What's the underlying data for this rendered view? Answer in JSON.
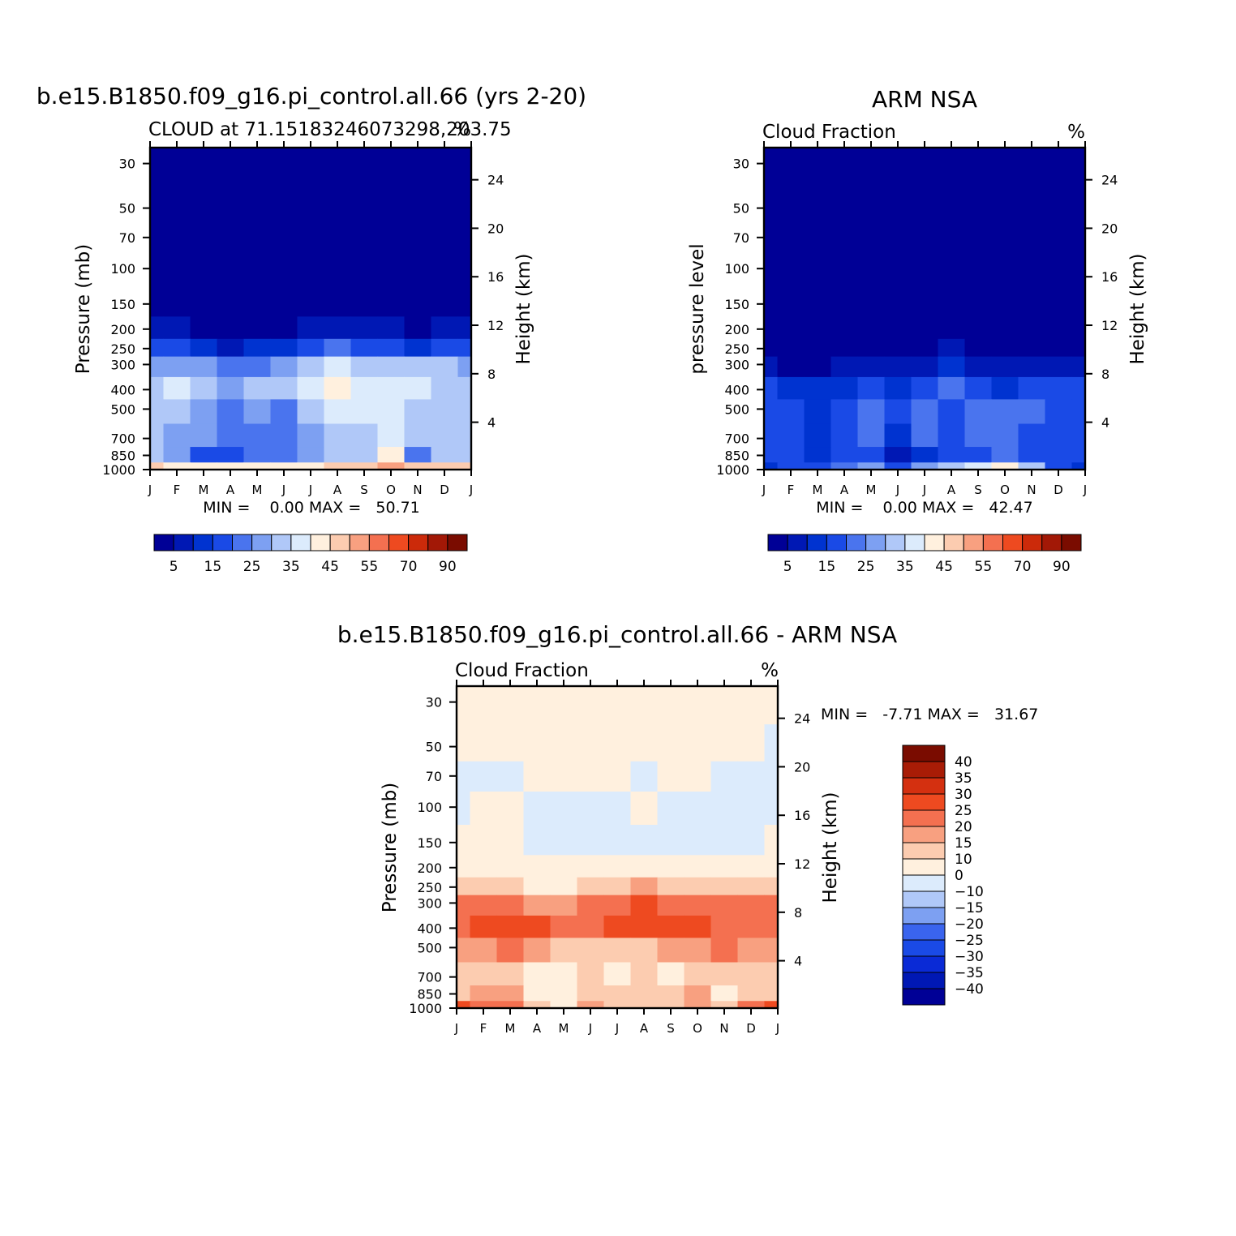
{
  "colors": {
    "abs_scale": [
      "#000096",
      "#0018b4",
      "#0033d0",
      "#1a4ae6",
      "#4a74ee",
      "#7da0f2",
      "#b0c8f8",
      "#dcebfc",
      "#fff0de",
      "#fcccb0",
      "#f8a080",
      "#f47050",
      "#ee4a20",
      "#cc2a0a",
      "#a21806",
      "#7a0c00"
    ],
    "diff_scale": [
      "#000096",
      "#0018b4",
      "#0a2ad6",
      "#1a4ae6",
      "#3a64ee",
      "#7da0f2",
      "#b0c8f8",
      "#dcebfc",
      "#fff0de",
      "#fcccb0",
      "#f8a080",
      "#f47050",
      "#ee4a20",
      "#d43010",
      "#a81c06",
      "#7a0c00"
    ]
  },
  "panels": {
    "model": {
      "main_title": "b.e15.B1850.f09_g16.pi_control.all.66 (yrs 2-20)",
      "left_subtitle": "CLOUD at 71.15183246073298,203.75",
      "right_subtitle": "%",
      "y_label": "Pressure (mb)",
      "y2_label": "Height (km)",
      "minmax": "MIN =    0.00 MAX =   50.71"
    },
    "obs": {
      "main_title": "ARM NSA",
      "left_subtitle": "Cloud Fraction",
      "right_subtitle": "%",
      "y_label": "pressure level",
      "y2_label": "Height (km)",
      "minmax": "MIN =    0.00 MAX =   42.47"
    },
    "diff": {
      "main_title": "b.e15.B1850.f09_g16.pi_control.all.66 - ARM NSA",
      "left_subtitle": "Cloud Fraction",
      "right_subtitle": "%",
      "y_label": "Pressure (mb)",
      "y2_label": "Height (km)",
      "minmax": "MIN =   -7.71 MAX =   31.67"
    }
  },
  "chart_data": [
    {
      "type": "heatmap",
      "title": "b.e15.B1850.f09_g16.pi_control.all.66 (yrs 2-20)",
      "subtitle": "CLOUD at 71.15183246073298,203.75",
      "units": "%",
      "xlabel": "",
      "ylabel": "Pressure (mb)",
      "y2label": "Height (km)",
      "x": [
        "J",
        "F",
        "M",
        "A",
        "M",
        "J",
        "J",
        "A",
        "S",
        "O",
        "N",
        "D",
        "J"
      ],
      "y_ticks": [
        30,
        50,
        70,
        100,
        150,
        200,
        250,
        300,
        400,
        500,
        700,
        850,
        1000
      ],
      "y2_ticks": [
        24,
        20,
        16,
        12,
        8,
        4
      ],
      "ylim": [
        1000,
        25
      ],
      "y_scale": "log",
      "colorbar_ticks": [
        "5",
        "15",
        "25",
        "35",
        "45",
        "55",
        "70",
        "90"
      ],
      "levels": [
        0,
        5,
        10,
        15,
        20,
        25,
        30,
        35,
        40,
        45,
        50,
        55,
        60,
        70,
        80,
        90,
        100
      ],
      "z": [
        [
          0,
          0,
          0,
          0,
          0,
          0,
          0,
          0,
          0,
          0,
          0,
          0,
          0
        ],
        [
          0,
          0,
          0,
          0,
          0,
          0,
          0,
          0,
          0,
          0,
          0,
          0,
          0
        ],
        [
          0,
          0,
          0,
          0,
          0,
          0,
          0,
          0,
          0,
          0,
          0,
          0,
          0
        ],
        [
          0,
          0,
          0,
          0,
          0,
          0,
          0,
          0,
          0,
          0,
          0,
          0,
          0
        ],
        [
          1,
          1,
          1,
          0,
          0,
          1,
          1,
          1,
          1,
          1,
          1,
          1,
          1
        ],
        [
          7,
          6,
          4,
          1,
          2,
          4,
          5,
          6,
          5,
          5,
          4,
          6,
          7
        ],
        [
          17,
          15,
          13,
          8,
          10,
          14,
          17,
          20,
          18,
          16,
          14,
          15,
          17
        ],
        [
          28,
          27,
          26,
          22,
          24,
          27,
          30,
          35,
          33,
          32,
          31,
          30,
          28
        ],
        [
          31,
          36,
          31,
          29,
          30,
          30,
          36,
          40,
          37,
          37,
          36,
          32,
          31
        ],
        [
          30,
          30,
          28,
          22,
          25,
          22,
          31,
          35,
          35,
          39,
          34,
          31,
          30
        ],
        [
          30,
          29,
          26,
          22,
          24,
          24,
          28,
          31,
          32,
          36,
          31,
          30,
          30
        ],
        [
          30,
          28,
          15,
          17,
          20,
          23,
          27,
          30,
          33,
          40,
          24,
          30,
          30
        ],
        [
          46,
          44,
          42,
          40,
          40,
          42,
          44,
          46,
          48,
          50,
          48,
          46,
          46
        ]
      ],
      "min": "0.00",
      "max": "50.71"
    },
    {
      "type": "heatmap",
      "title": "ARM NSA",
      "subtitle": "Cloud Fraction",
      "units": "%",
      "xlabel": "",
      "ylabel": "pressure level",
      "y2label": "Height (km)",
      "x": [
        "J",
        "F",
        "M",
        "A",
        "M",
        "J",
        "J",
        "A",
        "S",
        "O",
        "N",
        "D",
        "J"
      ],
      "y_ticks": [
        30,
        50,
        70,
        100,
        150,
        200,
        250,
        300,
        400,
        500,
        700,
        850,
        1000
      ],
      "y2_ticks": [
        24,
        20,
        16,
        12,
        8,
        4
      ],
      "ylim": [
        1000,
        25
      ],
      "y_scale": "log",
      "colorbar_ticks": [
        "5",
        "15",
        "25",
        "35",
        "45",
        "55",
        "70",
        "90"
      ],
      "levels": [
        0,
        5,
        10,
        15,
        20,
        25,
        30,
        35,
        40,
        45,
        50,
        55,
        60,
        70,
        80,
        90,
        100
      ],
      "z": [
        [
          0,
          0,
          0,
          0,
          0,
          0,
          0,
          0,
          0,
          0,
          0,
          0,
          0
        ],
        [
          0,
          0,
          0,
          0,
          0,
          0,
          0,
          0,
          0,
          0,
          0,
          0,
          0
        ],
        [
          0,
          0,
          0,
          0,
          0,
          0,
          0,
          0,
          0,
          0,
          0,
          0,
          0
        ],
        [
          0,
          0,
          0,
          0,
          0,
          0,
          0,
          0,
          0,
          0,
          0,
          0,
          0
        ],
        [
          0,
          0,
          0,
          0,
          0,
          0,
          0,
          0,
          0,
          0,
          0,
          0,
          0
        ],
        [
          0,
          0,
          0,
          0,
          0,
          0,
          0,
          0,
          0,
          0,
          0,
          0,
          0
        ],
        [
          1,
          1,
          1,
          1,
          2,
          3,
          4,
          5,
          3,
          2,
          2,
          1,
          1
        ],
        [
          6,
          4,
          3,
          5,
          7,
          8,
          9,
          10,
          8,
          5,
          5,
          7,
          6
        ],
        [
          15,
          13,
          12,
          14,
          16,
          13,
          19,
          20,
          16,
          14,
          15,
          18,
          15
        ],
        [
          17,
          16,
          14,
          18,
          21,
          15,
          23,
          19,
          22,
          21,
          20,
          17,
          17
        ],
        [
          17,
          16,
          13,
          17,
          20,
          12,
          20,
          17,
          21,
          22,
          19,
          18,
          17
        ],
        [
          16,
          17,
          14,
          15,
          17,
          8,
          14,
          16,
          19,
          22,
          19,
          16,
          16
        ],
        [
          10,
          16,
          18,
          22,
          25,
          17,
          25,
          32,
          38,
          40,
          30,
          18,
          10
        ]
      ],
      "min": "0.00",
      "max": "42.47"
    },
    {
      "type": "heatmap",
      "title": "b.e15.B1850.f09_g16.pi_control.all.66 - ARM NSA",
      "subtitle": "Cloud Fraction",
      "units": "%",
      "xlabel": "",
      "ylabel": "Pressure (mb)",
      "y2label": "Height (km)",
      "x": [
        "J",
        "F",
        "M",
        "A",
        "M",
        "J",
        "J",
        "A",
        "S",
        "O",
        "N",
        "D",
        "J"
      ],
      "y_ticks": [
        30,
        50,
        70,
        100,
        150,
        200,
        250,
        300,
        400,
        500,
        700,
        850,
        1000
      ],
      "y2_ticks": [
        24,
        20,
        16,
        12,
        8,
        4
      ],
      "ylim": [
        1000,
        25
      ],
      "y_scale": "log",
      "colorbar_ticks": [
        "40",
        "35",
        "30",
        "25",
        "20",
        "15",
        "10",
        "0",
        "-10",
        "-15",
        "-20",
        "-25",
        "-30",
        "-35",
        "-40"
      ],
      "levels": [
        -100,
        -40,
        -35,
        -30,
        -25,
        -20,
        -15,
        -10,
        0,
        10,
        15,
        20,
        25,
        30,
        35,
        40,
        100
      ],
      "z": [
        [
          0.2,
          0.2,
          0.2,
          0.2,
          0.2,
          0.2,
          0.2,
          0.2,
          0.2,
          0.2,
          0.2,
          0.2,
          0.2
        ],
        [
          0.2,
          0.2,
          0.2,
          0.2,
          0.2,
          0.2,
          0.2,
          0.2,
          0.2,
          0.2,
          0.2,
          0.2,
          -0.3
        ],
        [
          -0.3,
          -0.3,
          -0.3,
          0.2,
          0.2,
          0.2,
          0.2,
          -0.4,
          0.2,
          0.2,
          -0.3,
          -0.3,
          -0.3
        ],
        [
          -0.3,
          0.2,
          0.2,
          -0.3,
          -0.3,
          -0.3,
          -0.3,
          0.2,
          -0.3,
          -0.3,
          -0.3,
          -0.3,
          -0.3
        ],
        [
          0.2,
          0.2,
          0.2,
          -0.3,
          -0.3,
          -0.3,
          -0.3,
          -0.3,
          -0.3,
          -0.3,
          -0.3,
          -0.3,
          0.2
        ],
        [
          3,
          3,
          3,
          1,
          1,
          1,
          2,
          3,
          2,
          1,
          1,
          2,
          3
        ],
        [
          14,
          13,
          12,
          8,
          9,
          11,
          13,
          15,
          14,
          12,
          11,
          12,
          14
        ],
        [
          20,
          22,
          22,
          17,
          18,
          20,
          23,
          25,
          24,
          23,
          22,
          20,
          20
        ],
        [
          20,
          25,
          28,
          25,
          24,
          22,
          27,
          28,
          28,
          26,
          20,
          20,
          20
        ],
        [
          16,
          18,
          20,
          16,
          14,
          12,
          13,
          14,
          15,
          18,
          20,
          19,
          16
        ],
        [
          14,
          13,
          13,
          6,
          5,
          10,
          7,
          13,
          8,
          12,
          12,
          13,
          14
        ],
        [
          14,
          16,
          18,
          9,
          9,
          11,
          12,
          11,
          12,
          17,
          9,
          11,
          14
        ],
        [
          25,
          21,
          20,
          10,
          9,
          17,
          12,
          10,
          11,
          15,
          11,
          22,
          25
        ]
      ],
      "min": "-7.71",
      "max": "31.67"
    }
  ]
}
